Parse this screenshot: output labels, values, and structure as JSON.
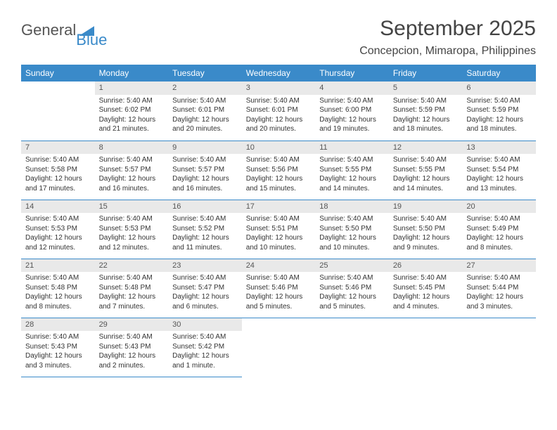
{
  "logo": {
    "part1": "General",
    "part2": "Blue"
  },
  "title": "September 2025",
  "location": "Concepcion, Mimaropa, Philippines",
  "colors": {
    "header_bg": "#3a8ac9",
    "header_text": "#ffffff",
    "daynum_bg": "#e9e9e9",
    "text": "#333333",
    "rule": "#3a8ac9",
    "background": "#ffffff"
  },
  "typography": {
    "title_fontsize": 30,
    "location_fontsize": 16,
    "head_fontsize": 12,
    "cell_fontsize": 10
  },
  "days_of_week": [
    "Sunday",
    "Monday",
    "Tuesday",
    "Wednesday",
    "Thursday",
    "Friday",
    "Saturday"
  ],
  "weeks": [
    [
      null,
      {
        "n": "1",
        "sunrise": "Sunrise: 5:40 AM",
        "sunset": "Sunset: 6:02 PM",
        "daylight": "Daylight: 12 hours and 21 minutes."
      },
      {
        "n": "2",
        "sunrise": "Sunrise: 5:40 AM",
        "sunset": "Sunset: 6:01 PM",
        "daylight": "Daylight: 12 hours and 20 minutes."
      },
      {
        "n": "3",
        "sunrise": "Sunrise: 5:40 AM",
        "sunset": "Sunset: 6:01 PM",
        "daylight": "Daylight: 12 hours and 20 minutes."
      },
      {
        "n": "4",
        "sunrise": "Sunrise: 5:40 AM",
        "sunset": "Sunset: 6:00 PM",
        "daylight": "Daylight: 12 hours and 19 minutes."
      },
      {
        "n": "5",
        "sunrise": "Sunrise: 5:40 AM",
        "sunset": "Sunset: 5:59 PM",
        "daylight": "Daylight: 12 hours and 18 minutes."
      },
      {
        "n": "6",
        "sunrise": "Sunrise: 5:40 AM",
        "sunset": "Sunset: 5:59 PM",
        "daylight": "Daylight: 12 hours and 18 minutes."
      }
    ],
    [
      {
        "n": "7",
        "sunrise": "Sunrise: 5:40 AM",
        "sunset": "Sunset: 5:58 PM",
        "daylight": "Daylight: 12 hours and 17 minutes."
      },
      {
        "n": "8",
        "sunrise": "Sunrise: 5:40 AM",
        "sunset": "Sunset: 5:57 PM",
        "daylight": "Daylight: 12 hours and 16 minutes."
      },
      {
        "n": "9",
        "sunrise": "Sunrise: 5:40 AM",
        "sunset": "Sunset: 5:57 PM",
        "daylight": "Daylight: 12 hours and 16 minutes."
      },
      {
        "n": "10",
        "sunrise": "Sunrise: 5:40 AM",
        "sunset": "Sunset: 5:56 PM",
        "daylight": "Daylight: 12 hours and 15 minutes."
      },
      {
        "n": "11",
        "sunrise": "Sunrise: 5:40 AM",
        "sunset": "Sunset: 5:55 PM",
        "daylight": "Daylight: 12 hours and 14 minutes."
      },
      {
        "n": "12",
        "sunrise": "Sunrise: 5:40 AM",
        "sunset": "Sunset: 5:55 PM",
        "daylight": "Daylight: 12 hours and 14 minutes."
      },
      {
        "n": "13",
        "sunrise": "Sunrise: 5:40 AM",
        "sunset": "Sunset: 5:54 PM",
        "daylight": "Daylight: 12 hours and 13 minutes."
      }
    ],
    [
      {
        "n": "14",
        "sunrise": "Sunrise: 5:40 AM",
        "sunset": "Sunset: 5:53 PM",
        "daylight": "Daylight: 12 hours and 12 minutes."
      },
      {
        "n": "15",
        "sunrise": "Sunrise: 5:40 AM",
        "sunset": "Sunset: 5:53 PM",
        "daylight": "Daylight: 12 hours and 12 minutes."
      },
      {
        "n": "16",
        "sunrise": "Sunrise: 5:40 AM",
        "sunset": "Sunset: 5:52 PM",
        "daylight": "Daylight: 12 hours and 11 minutes."
      },
      {
        "n": "17",
        "sunrise": "Sunrise: 5:40 AM",
        "sunset": "Sunset: 5:51 PM",
        "daylight": "Daylight: 12 hours and 10 minutes."
      },
      {
        "n": "18",
        "sunrise": "Sunrise: 5:40 AM",
        "sunset": "Sunset: 5:50 PM",
        "daylight": "Daylight: 12 hours and 10 minutes."
      },
      {
        "n": "19",
        "sunrise": "Sunrise: 5:40 AM",
        "sunset": "Sunset: 5:50 PM",
        "daylight": "Daylight: 12 hours and 9 minutes."
      },
      {
        "n": "20",
        "sunrise": "Sunrise: 5:40 AM",
        "sunset": "Sunset: 5:49 PM",
        "daylight": "Daylight: 12 hours and 8 minutes."
      }
    ],
    [
      {
        "n": "21",
        "sunrise": "Sunrise: 5:40 AM",
        "sunset": "Sunset: 5:48 PM",
        "daylight": "Daylight: 12 hours and 8 minutes."
      },
      {
        "n": "22",
        "sunrise": "Sunrise: 5:40 AM",
        "sunset": "Sunset: 5:48 PM",
        "daylight": "Daylight: 12 hours and 7 minutes."
      },
      {
        "n": "23",
        "sunrise": "Sunrise: 5:40 AM",
        "sunset": "Sunset: 5:47 PM",
        "daylight": "Daylight: 12 hours and 6 minutes."
      },
      {
        "n": "24",
        "sunrise": "Sunrise: 5:40 AM",
        "sunset": "Sunset: 5:46 PM",
        "daylight": "Daylight: 12 hours and 5 minutes."
      },
      {
        "n": "25",
        "sunrise": "Sunrise: 5:40 AM",
        "sunset": "Sunset: 5:46 PM",
        "daylight": "Daylight: 12 hours and 5 minutes."
      },
      {
        "n": "26",
        "sunrise": "Sunrise: 5:40 AM",
        "sunset": "Sunset: 5:45 PM",
        "daylight": "Daylight: 12 hours and 4 minutes."
      },
      {
        "n": "27",
        "sunrise": "Sunrise: 5:40 AM",
        "sunset": "Sunset: 5:44 PM",
        "daylight": "Daylight: 12 hours and 3 minutes."
      }
    ],
    [
      {
        "n": "28",
        "sunrise": "Sunrise: 5:40 AM",
        "sunset": "Sunset: 5:43 PM",
        "daylight": "Daylight: 12 hours and 3 minutes."
      },
      {
        "n": "29",
        "sunrise": "Sunrise: 5:40 AM",
        "sunset": "Sunset: 5:43 PM",
        "daylight": "Daylight: 12 hours and 2 minutes."
      },
      {
        "n": "30",
        "sunrise": "Sunrise: 5:40 AM",
        "sunset": "Sunset: 5:42 PM",
        "daylight": "Daylight: 12 hours and 1 minute."
      },
      null,
      null,
      null,
      null
    ]
  ]
}
